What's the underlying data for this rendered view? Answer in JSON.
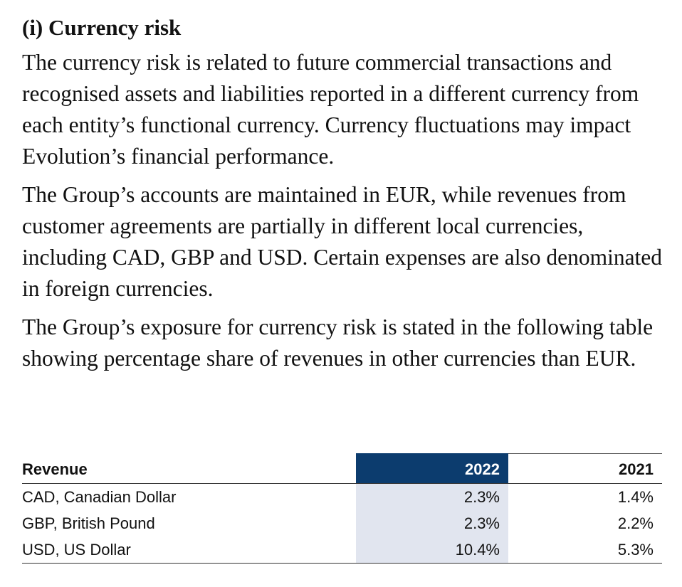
{
  "section": {
    "heading": "(i) Currency risk",
    "paragraphs": [
      "The currency risk is related to future commercial transactions and recognised assets and liabilities reported in a different currency from each entity’s functional currency. Currency fluctuations may impact Evolution’s financial performance.",
      "The Group’s accounts are maintained in EUR, while revenues from customer agreements are partially in different local currencies, including CAD, GBP and USD. Certain expenses are also denominated in foreign currencies.",
      "The Group’s exposure for currency risk is stated in the following table showing percentage share of revenues in other currencies than EUR."
    ]
  },
  "table": {
    "headers": {
      "label": "Revenue",
      "year_current": "2022",
      "year_prior": "2021"
    },
    "rows": [
      {
        "currency": "CAD, Canadian Dollar",
        "v2022": "2.3%",
        "v2021": "1.4%"
      },
      {
        "currency": "GBP, British Pound",
        "v2022": "2.3%",
        "v2021": "2.2%"
      },
      {
        "currency": "USD, US Dollar",
        "v2022": "10.4%",
        "v2021": "5.3%"
      }
    ]
  },
  "colors": {
    "header_highlight": "#0c3c6e",
    "column_highlight": "#e1e5ef"
  }
}
